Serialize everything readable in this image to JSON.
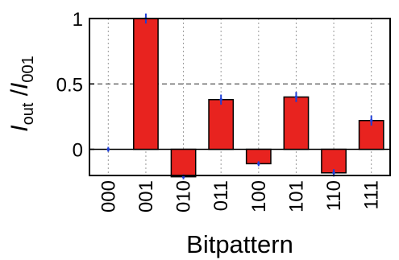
{
  "chart_data": {
    "type": "bar",
    "categories": [
      "000",
      "001",
      "010",
      "011",
      "100",
      "101",
      "110",
      "111"
    ],
    "values": [
      0.0,
      1.0,
      -0.21,
      0.38,
      -0.11,
      0.4,
      -0.18,
      0.22
    ],
    "error": [
      0.0,
      0.02,
      0.0,
      0.02,
      0.0,
      0.02,
      0.01,
      0.02
    ],
    "xlabel": "Bitpattern",
    "ylabel": {
      "main": "I",
      "main_sub": "out",
      "separator": " /",
      "den": "I",
      "den_sub": "001"
    },
    "yticks": [
      0,
      0.5,
      1
    ],
    "ytick_labels": [
      "0",
      "0.5",
      "1"
    ],
    "ylim": [
      -0.2,
      1.0
    ],
    "grid": true,
    "legend": "none",
    "colors": {
      "bar_fill": "#e8231f",
      "bar_stroke": "#000000",
      "error_bar": "#1f3fd6",
      "grid": "#9a9a9a",
      "zero_line": "#000000"
    }
  }
}
